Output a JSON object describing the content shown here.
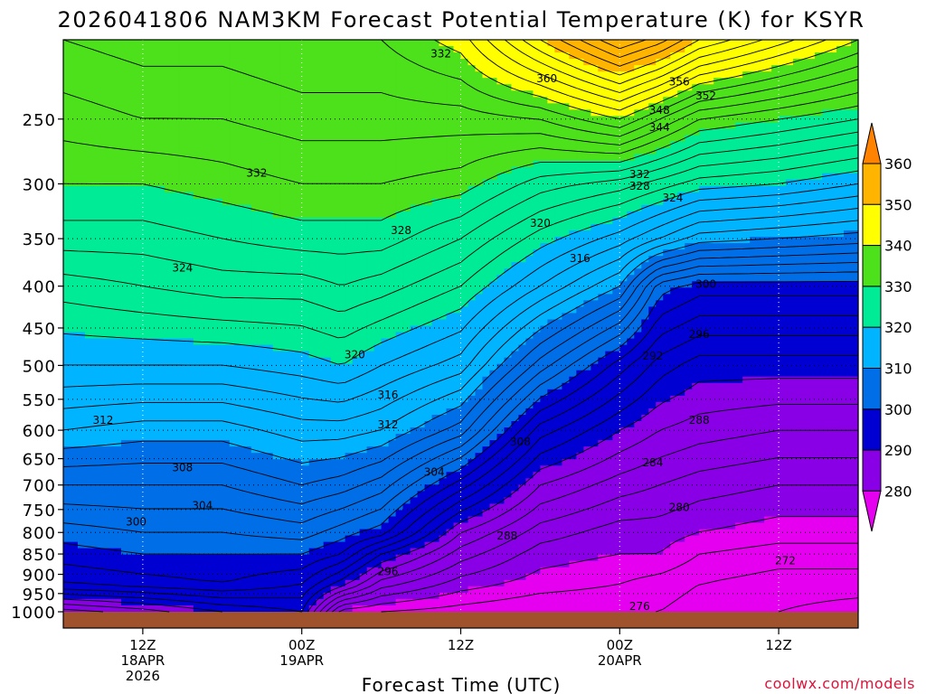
{
  "chart_data": {
    "type": "heatmap",
    "title": "2026041806 NAM3KM Forecast Potential Temperature (K) for KSYR",
    "xlabel": "Forecast Time (UTC)",
    "ylabel": "",
    "credit": "coolwx.com/models",
    "x_unit": "hours since 2026-04-18 06Z",
    "xlim": [
      0,
      60
    ],
    "ylim": [
      1000,
      200
    ],
    "y_scale": "log-pressure (hPa), reversed",
    "x_ticks": [
      {
        "x": 6,
        "lines": [
          "12Z",
          "18APR",
          "2026"
        ]
      },
      {
        "x": 18,
        "lines": [
          "00Z",
          "19APR"
        ]
      },
      {
        "x": 30,
        "lines": [
          "12Z"
        ]
      },
      {
        "x": 42,
        "lines": [
          "00Z",
          "20APR"
        ]
      },
      {
        "x": 54,
        "lines": [
          "12Z"
        ]
      }
    ],
    "y_ticks": [
      250,
      300,
      350,
      400,
      450,
      500,
      550,
      600,
      650,
      700,
      750,
      800,
      850,
      900,
      950,
      1000
    ],
    "grid": true,
    "colorbar": {
      "placement": "right",
      "ticks": [
        280,
        290,
        300,
        310,
        320,
        330,
        340,
        350,
        360
      ],
      "bins": [
        {
          "lo": 270,
          "hi": 280,
          "color": "#e600f0"
        },
        {
          "lo": 280,
          "hi": 290,
          "color": "#8a00e6"
        },
        {
          "lo": 290,
          "hi": 300,
          "color": "#0000d2"
        },
        {
          "lo": 300,
          "hi": 310,
          "color": "#006ee6"
        },
        {
          "lo": 310,
          "hi": 320,
          "color": "#00b4ff"
        },
        {
          "lo": 320,
          "hi": 330,
          "color": "#00eb96"
        },
        {
          "lo": 330,
          "hi": 340,
          "color": "#4de11c"
        },
        {
          "lo": 340,
          "hi": 350,
          "color": "#ffff00"
        },
        {
          "lo": 350,
          "hi": 360,
          "color": "#ffb400"
        },
        {
          "lo": 360,
          "hi": 370,
          "color": "#ff8200"
        }
      ]
    },
    "ground_color": "#a0522d",
    "contour_interval": 2,
    "columns": [
      {
        "t": 0,
        "theta": [
          [
            1000,
            285
          ],
          [
            925,
            296
          ],
          [
            850,
            299
          ],
          [
            800,
            301
          ],
          [
            700,
            306
          ],
          [
            600,
            312
          ],
          [
            500,
            318
          ],
          [
            400,
            323
          ],
          [
            350,
            327
          ],
          [
            300,
            330
          ],
          [
            250,
            333
          ],
          [
            200,
            336
          ]
        ]
      },
      {
        "t": 6,
        "theta": [
          [
            1000,
            287
          ],
          [
            925,
            297
          ],
          [
            850,
            300
          ],
          [
            800,
            302
          ],
          [
            700,
            306
          ],
          [
            600,
            311
          ],
          [
            500,
            318
          ],
          [
            400,
            324
          ],
          [
            350,
            327
          ],
          [
            300,
            330
          ],
          [
            250,
            334
          ],
          [
            200,
            337
          ]
        ]
      },
      {
        "t": 12,
        "theta": [
          [
            1000,
            290
          ],
          [
            925,
            298
          ],
          [
            850,
            300
          ],
          [
            800,
            302
          ],
          [
            700,
            306
          ],
          [
            600,
            311
          ],
          [
            500,
            318
          ],
          [
            400,
            325
          ],
          [
            350,
            328
          ],
          [
            300,
            331
          ],
          [
            250,
            334
          ],
          [
            200,
            337
          ]
        ]
      },
      {
        "t": 18,
        "theta": [
          [
            1000,
            292
          ],
          [
            925,
            296
          ],
          [
            850,
            300
          ],
          [
            800,
            303
          ],
          [
            700,
            308
          ],
          [
            600,
            313
          ],
          [
            500,
            319
          ],
          [
            400,
            325
          ],
          [
            350,
            329
          ],
          [
            300,
            332
          ],
          [
            250,
            335
          ],
          [
            200,
            338
          ]
        ]
      },
      {
        "t": 21,
        "theta": [
          [
            1000,
            279
          ],
          [
            925,
            291
          ],
          [
            850,
            298
          ],
          [
            800,
            301
          ],
          [
            700,
            307
          ],
          [
            600,
            313
          ],
          [
            500,
            320
          ],
          [
            400,
            326
          ],
          [
            350,
            329
          ],
          [
            300,
            332
          ],
          [
            250,
            335
          ],
          [
            200,
            338
          ]
        ]
      },
      {
        "t": 24,
        "theta": [
          [
            1000,
            278
          ],
          [
            925,
            285
          ],
          [
            850,
            292
          ],
          [
            800,
            299
          ],
          [
            700,
            305
          ],
          [
            600,
            312
          ],
          [
            500,
            318
          ],
          [
            400,
            325
          ],
          [
            350,
            329
          ],
          [
            300,
            332
          ],
          [
            250,
            335
          ],
          [
            200,
            338
          ]
        ]
      },
      {
        "t": 30,
        "theta": [
          [
            1000,
            277
          ],
          [
            925,
            281
          ],
          [
            850,
            285
          ],
          [
            800,
            288
          ],
          [
            700,
            297
          ],
          [
            600,
            307
          ],
          [
            500,
            315
          ],
          [
            400,
            322
          ],
          [
            350,
            326
          ],
          [
            300,
            331
          ],
          [
            250,
            335
          ],
          [
            200,
            341
          ]
        ]
      },
      {
        "t": 36,
        "theta": [
          [
            1000,
            276
          ],
          [
            925,
            279
          ],
          [
            850,
            281
          ],
          [
            800,
            283
          ],
          [
            700,
            288
          ],
          [
            600,
            295
          ],
          [
            500,
            305
          ],
          [
            400,
            316
          ],
          [
            350,
            321
          ],
          [
            300,
            327
          ],
          [
            250,
            336
          ],
          [
            200,
            350
          ]
        ]
      },
      {
        "t": 42,
        "theta": [
          [
            1000,
            276
          ],
          [
            925,
            278
          ],
          [
            850,
            280
          ],
          [
            800,
            281
          ],
          [
            700,
            285
          ],
          [
            600,
            290
          ],
          [
            500,
            297
          ],
          [
            400,
            310
          ],
          [
            350,
            317
          ],
          [
            300,
            325
          ],
          [
            250,
            340
          ],
          [
            200,
            358
          ]
        ]
      },
      {
        "t": 45,
        "theta": [
          [
            1000,
            276
          ],
          [
            925,
            277
          ],
          [
            850,
            280
          ],
          [
            800,
            281
          ],
          [
            700,
            284
          ],
          [
            600,
            288
          ],
          [
            500,
            293
          ],
          [
            400,
            301
          ],
          [
            350,
            314
          ],
          [
            300,
            323
          ],
          [
            250,
            336
          ],
          [
            200,
            355
          ]
        ]
      },
      {
        "t": 48,
        "theta": [
          [
            1000,
            275
          ],
          [
            925,
            276
          ],
          [
            850,
            278
          ],
          [
            800,
            280
          ],
          [
            700,
            283
          ],
          [
            600,
            287
          ],
          [
            500,
            291
          ],
          [
            400,
            299
          ],
          [
            350,
            311
          ],
          [
            300,
            321
          ],
          [
            250,
            332
          ],
          [
            200,
            350
          ]
        ]
      },
      {
        "t": 54,
        "theta": [
          [
            1000,
            274
          ],
          [
            925,
            275
          ],
          [
            850,
            277
          ],
          [
            800,
            279
          ],
          [
            700,
            282
          ],
          [
            600,
            286
          ],
          [
            500,
            291
          ],
          [
            400,
            299
          ],
          [
            350,
            310
          ],
          [
            300,
            320
          ],
          [
            250,
            330
          ],
          [
            200,
            345
          ]
        ]
      },
      {
        "t": 60,
        "theta": [
          [
            1000,
            273
          ],
          [
            925,
            275
          ],
          [
            850,
            277
          ],
          [
            800,
            279
          ],
          [
            700,
            282
          ],
          [
            600,
            286
          ],
          [
            500,
            291
          ],
          [
            400,
            299
          ],
          [
            350,
            309
          ],
          [
            300,
            318
          ],
          [
            250,
            328
          ],
          [
            200,
            340
          ]
        ]
      }
    ],
    "contour_labels": [
      {
        "t": 28.5,
        "p": 208,
        "text": "332"
      },
      {
        "t": 36.5,
        "p": 223,
        "text": "360"
      },
      {
        "t": 46.5,
        "p": 225,
        "text": "356"
      },
      {
        "t": 48.5,
        "p": 234,
        "text": "352"
      },
      {
        "t": 45.0,
        "p": 244,
        "text": "348"
      },
      {
        "t": 45.0,
        "p": 256,
        "text": "344"
      },
      {
        "t": 14.6,
        "p": 291,
        "text": "332"
      },
      {
        "t": 43.5,
        "p": 292,
        "text": "332"
      },
      {
        "t": 43.5,
        "p": 302,
        "text": "328"
      },
      {
        "t": 46.0,
        "p": 312,
        "text": "324"
      },
      {
        "t": 25.5,
        "p": 342,
        "text": "328"
      },
      {
        "t": 36.0,
        "p": 335,
        "text": "320"
      },
      {
        "t": 9.0,
        "p": 380,
        "text": "324"
      },
      {
        "t": 39.0,
        "p": 370,
        "text": "316"
      },
      {
        "t": 48.5,
        "p": 398,
        "text": "300"
      },
      {
        "t": 48.0,
        "p": 458,
        "text": "296"
      },
      {
        "t": 44.5,
        "p": 487,
        "text": "292"
      },
      {
        "t": 22.0,
        "p": 485,
        "text": "320"
      },
      {
        "t": 24.5,
        "p": 543,
        "text": "316"
      },
      {
        "t": 24.5,
        "p": 591,
        "text": "312"
      },
      {
        "t": 3.0,
        "p": 583,
        "text": "312"
      },
      {
        "t": 48.0,
        "p": 583,
        "text": "288"
      },
      {
        "t": 34.5,
        "p": 620,
        "text": "308"
      },
      {
        "t": 9.0,
        "p": 667,
        "text": "308"
      },
      {
        "t": 28.0,
        "p": 675,
        "text": "304"
      },
      {
        "t": 44.5,
        "p": 657,
        "text": "284"
      },
      {
        "t": 10.5,
        "p": 742,
        "text": "304"
      },
      {
        "t": 5.5,
        "p": 776,
        "text": "300"
      },
      {
        "t": 46.5,
        "p": 746,
        "text": "280"
      },
      {
        "t": 33.5,
        "p": 808,
        "text": "288"
      },
      {
        "t": 54.5,
        "p": 866,
        "text": "272"
      },
      {
        "t": 24.5,
        "p": 893,
        "text": "296"
      },
      {
        "t": 43.5,
        "p": 985,
        "text": "276"
      }
    ]
  }
}
